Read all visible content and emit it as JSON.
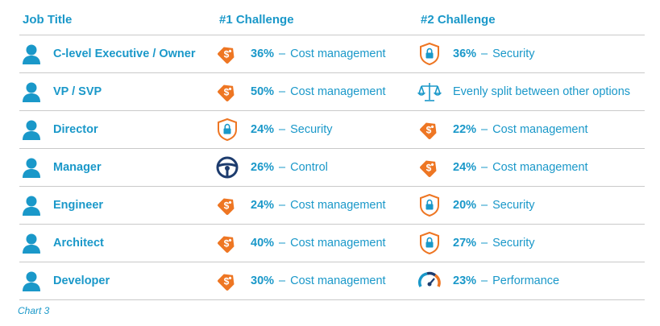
{
  "chart_data": {
    "type": "table",
    "columns": [
      "Job Title",
      "#1 Challenge",
      "#2 Challenge"
    ],
    "rows": [
      {
        "job": "C-level Executive / Owner",
        "first": {
          "pct": "36%",
          "label": "Cost management",
          "icon": "price-tag-icon"
        },
        "second": {
          "pct": "36%",
          "label": "Security",
          "icon": "shield-lock-icon"
        }
      },
      {
        "job": "VP / SVP",
        "first": {
          "pct": "50%",
          "label": "Cost management",
          "icon": "price-tag-icon"
        },
        "second": {
          "pct": "",
          "label": "Evenly split between other options",
          "icon": "balance-scale-icon"
        }
      },
      {
        "job": "Director",
        "first": {
          "pct": "24%",
          "label": "Security",
          "icon": "shield-lock-icon"
        },
        "second": {
          "pct": "22%",
          "label": "Cost management",
          "icon": "price-tag-icon"
        }
      },
      {
        "job": "Manager",
        "first": {
          "pct": "26%",
          "label": "Control",
          "icon": "steering-wheel-icon"
        },
        "second": {
          "pct": "24%",
          "label": "Cost management",
          "icon": "price-tag-icon"
        }
      },
      {
        "job": "Engineer",
        "first": {
          "pct": "24%",
          "label": "Cost management",
          "icon": "price-tag-icon"
        },
        "second": {
          "pct": "20%",
          "label": "Security",
          "icon": "shield-lock-icon"
        }
      },
      {
        "job": "Architect",
        "first": {
          "pct": "40%",
          "label": "Cost management",
          "icon": "price-tag-icon"
        },
        "second": {
          "pct": "27%",
          "label": "Security",
          "icon": "shield-lock-icon"
        }
      },
      {
        "job": "Developer",
        "first": {
          "pct": "30%",
          "label": "Cost management",
          "icon": "price-tag-icon"
        },
        "second": {
          "pct": "23%",
          "label": "Performance",
          "icon": "speedometer-icon"
        }
      }
    ]
  },
  "caption": "Chart 3",
  "colors": {
    "blue": "#1a98c9",
    "orange": "#ee7623",
    "navy": "#1d3c6e",
    "rule": "#c9c9c9"
  }
}
